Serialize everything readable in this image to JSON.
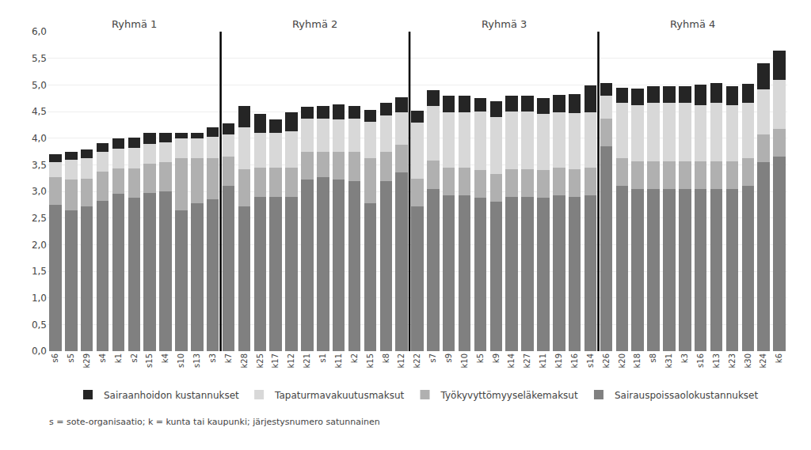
{
  "chart_data": {
    "type": "bar",
    "stacked": true,
    "categories": [
      "s6",
      "s5",
      "k29",
      "s4",
      "k1",
      "s2",
      "s15",
      "k4",
      "s10",
      "s13",
      "s3",
      "k7",
      "k28",
      "k25",
      "k17",
      "k12",
      "k21",
      "s1",
      "k11",
      "k2",
      "k15",
      "k8",
      "k12",
      "k22",
      "s7",
      "s9",
      "k10",
      "k5",
      "k9",
      "k14",
      "k27",
      "k11",
      "k19",
      "k16",
      "s14",
      "k26",
      "k20",
      "k18",
      "s8",
      "k31",
      "k3",
      "s16",
      "k13",
      "k23",
      "k30",
      "k24",
      "k6"
    ],
    "groups": [
      {
        "name": "Ryhmä 1",
        "start": 0,
        "end": 10
      },
      {
        "name": "Ryhmä 2",
        "start": 11,
        "end": 22
      },
      {
        "name": "Ryhmä 3",
        "start": 23,
        "end": 34
      },
      {
        "name": "Ryhmä 4",
        "start": 35,
        "end": 46
      }
    ],
    "series": [
      {
        "name": "Sairauspoissaolokustannukset",
        "color": "#808080",
        "values": [
          2.75,
          2.65,
          2.72,
          2.82,
          2.95,
          2.88,
          2.97,
          3.0,
          2.65,
          2.78,
          2.85,
          3.1,
          2.72,
          2.9,
          2.9,
          2.9,
          3.22,
          3.27,
          3.22,
          3.2,
          2.78,
          3.2,
          3.35,
          2.72,
          3.05,
          2.92,
          2.92,
          2.88,
          2.8,
          2.9,
          2.9,
          2.88,
          2.92,
          2.9,
          2.92,
          3.85,
          3.1,
          3.05,
          3.05,
          3.05,
          3.05,
          3.05,
          3.05,
          3.05,
          3.1,
          3.55,
          3.65
        ]
      },
      {
        "name": "Työkyvyttömyyseläkemaksut",
        "color": "#b0b0b0",
        "values": [
          0.52,
          0.57,
          0.52,
          0.55,
          0.48,
          0.55,
          0.55,
          0.55,
          0.98,
          0.85,
          0.78,
          0.55,
          0.7,
          0.55,
          0.55,
          0.55,
          0.52,
          0.48,
          0.53,
          0.55,
          0.85,
          0.55,
          0.52,
          0.52,
          0.53,
          0.52,
          0.52,
          0.52,
          0.52,
          0.52,
          0.52,
          0.52,
          0.52,
          0.52,
          0.52,
          0.52,
          0.52,
          0.52,
          0.52,
          0.52,
          0.52,
          0.52,
          0.52,
          0.52,
          0.52,
          0.52,
          0.52
        ]
      },
      {
        "name": "Tapaturmavakuutusmaksut",
        "color": "#d8d8d8",
        "values": [
          0.28,
          0.37,
          0.38,
          0.38,
          0.37,
          0.38,
          0.37,
          0.37,
          0.37,
          0.37,
          0.4,
          0.42,
          0.78,
          0.65,
          0.65,
          0.68,
          0.62,
          0.62,
          0.6,
          0.62,
          0.68,
          0.68,
          0.62,
          1.05,
          1.02,
          1.05,
          1.05,
          1.1,
          1.08,
          1.08,
          1.08,
          1.05,
          1.05,
          1.05,
          1.05,
          0.42,
          1.05,
          1.05,
          1.1,
          1.1,
          1.1,
          1.05,
          1.1,
          1.05,
          1.05,
          0.85,
          0.92
        ]
      },
      {
        "name": "Sairaanhoidon kustannukset",
        "color": "#252525",
        "values": [
          0.15,
          0.15,
          0.16,
          0.15,
          0.2,
          0.2,
          0.21,
          0.18,
          0.1,
          0.1,
          0.17,
          0.21,
          0.4,
          0.35,
          0.25,
          0.35,
          0.23,
          0.23,
          0.28,
          0.23,
          0.22,
          0.23,
          0.28,
          0.22,
          0.3,
          0.3,
          0.3,
          0.25,
          0.3,
          0.3,
          0.3,
          0.3,
          0.32,
          0.35,
          0.5,
          0.25,
          0.28,
          0.31,
          0.31,
          0.31,
          0.31,
          0.38,
          0.36,
          0.36,
          0.35,
          0.48,
          0.55
        ]
      }
    ],
    "ylim": [
      0,
      6.0
    ],
    "yticks": [
      {
        "value": 0.0,
        "label": "0,0"
      },
      {
        "value": 0.5,
        "label": "0,5"
      },
      {
        "value": 1.0,
        "label": "1,0"
      },
      {
        "value": 1.5,
        "label": "1,5"
      },
      {
        "value": 2.0,
        "label": "2,0"
      },
      {
        "value": 2.5,
        "label": "2,5"
      },
      {
        "value": 3.0,
        "label": "3,0"
      },
      {
        "value": 3.5,
        "label": "3,5"
      },
      {
        "value": 4.0,
        "label": "4,0"
      },
      {
        "value": 4.5,
        "label": "4,5"
      },
      {
        "value": 5.0,
        "label": "5,0"
      },
      {
        "value": 5.5,
        "label": "5,5"
      },
      {
        "value": 6.0,
        "label": "6,0"
      }
    ],
    "grid": "y",
    "legend": "bottom",
    "footnote": "s = sote-organisaatio; k = kunta tai kaupunki; järjestysnumero satunnainen"
  }
}
